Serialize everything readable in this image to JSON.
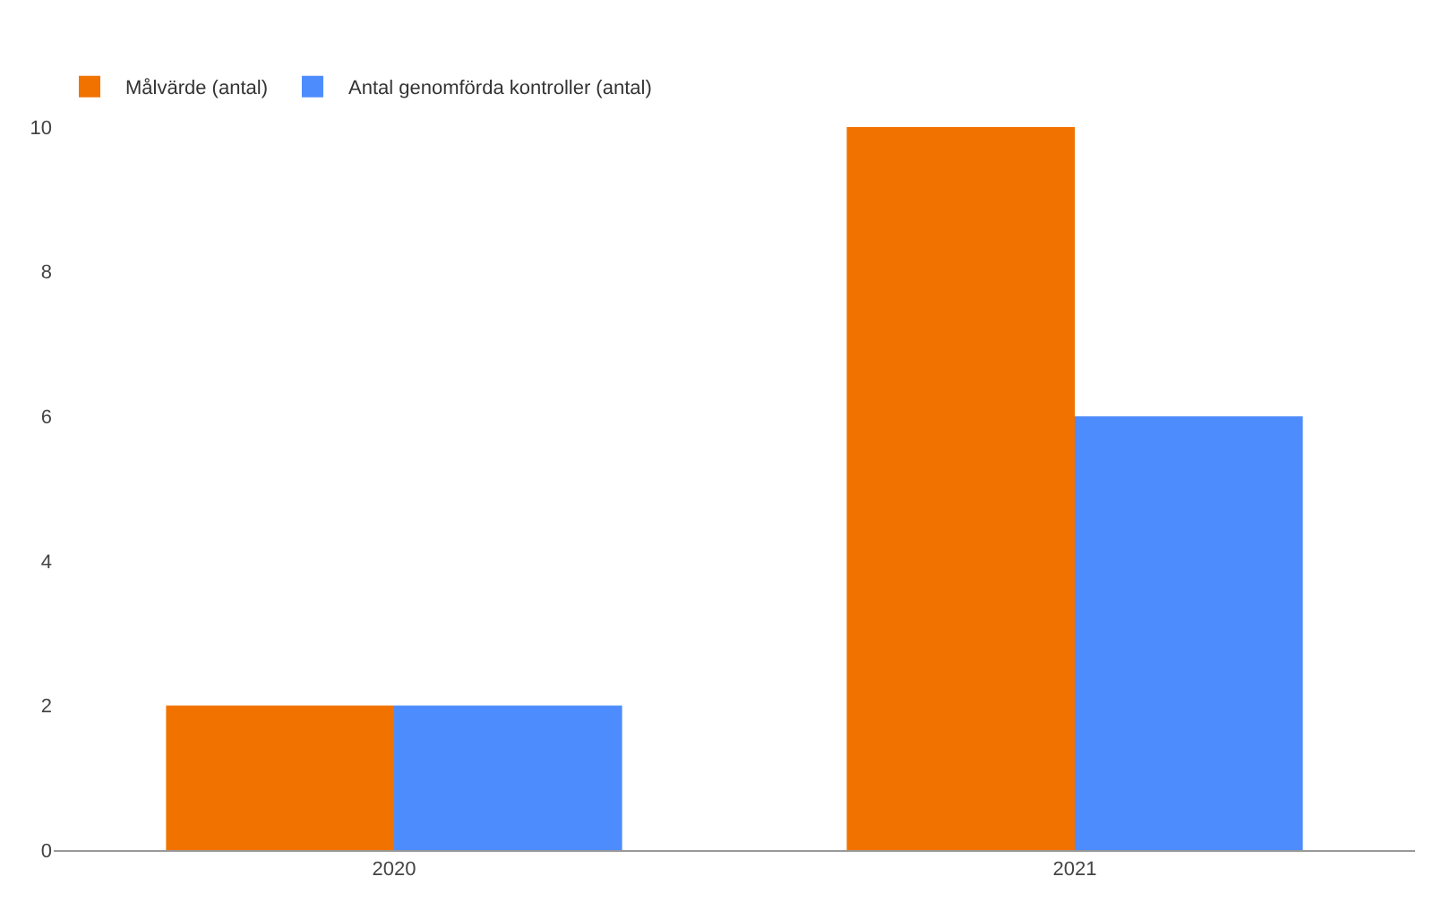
{
  "chart_data": {
    "type": "bar",
    "categories": [
      "2020",
      "2021"
    ],
    "series": [
      {
        "name": "Målvärde (antal)",
        "color": "#f27200",
        "values": [
          2,
          10
        ]
      },
      {
        "name": "Antal genomförda kontroller (antal)",
        "color": "#4d8cfd",
        "values": [
          2,
          6
        ]
      }
    ],
    "ylim": [
      0,
      10
    ],
    "yticks": [
      0,
      2,
      4,
      6,
      8,
      10
    ],
    "grid": false,
    "legend": "top left"
  }
}
